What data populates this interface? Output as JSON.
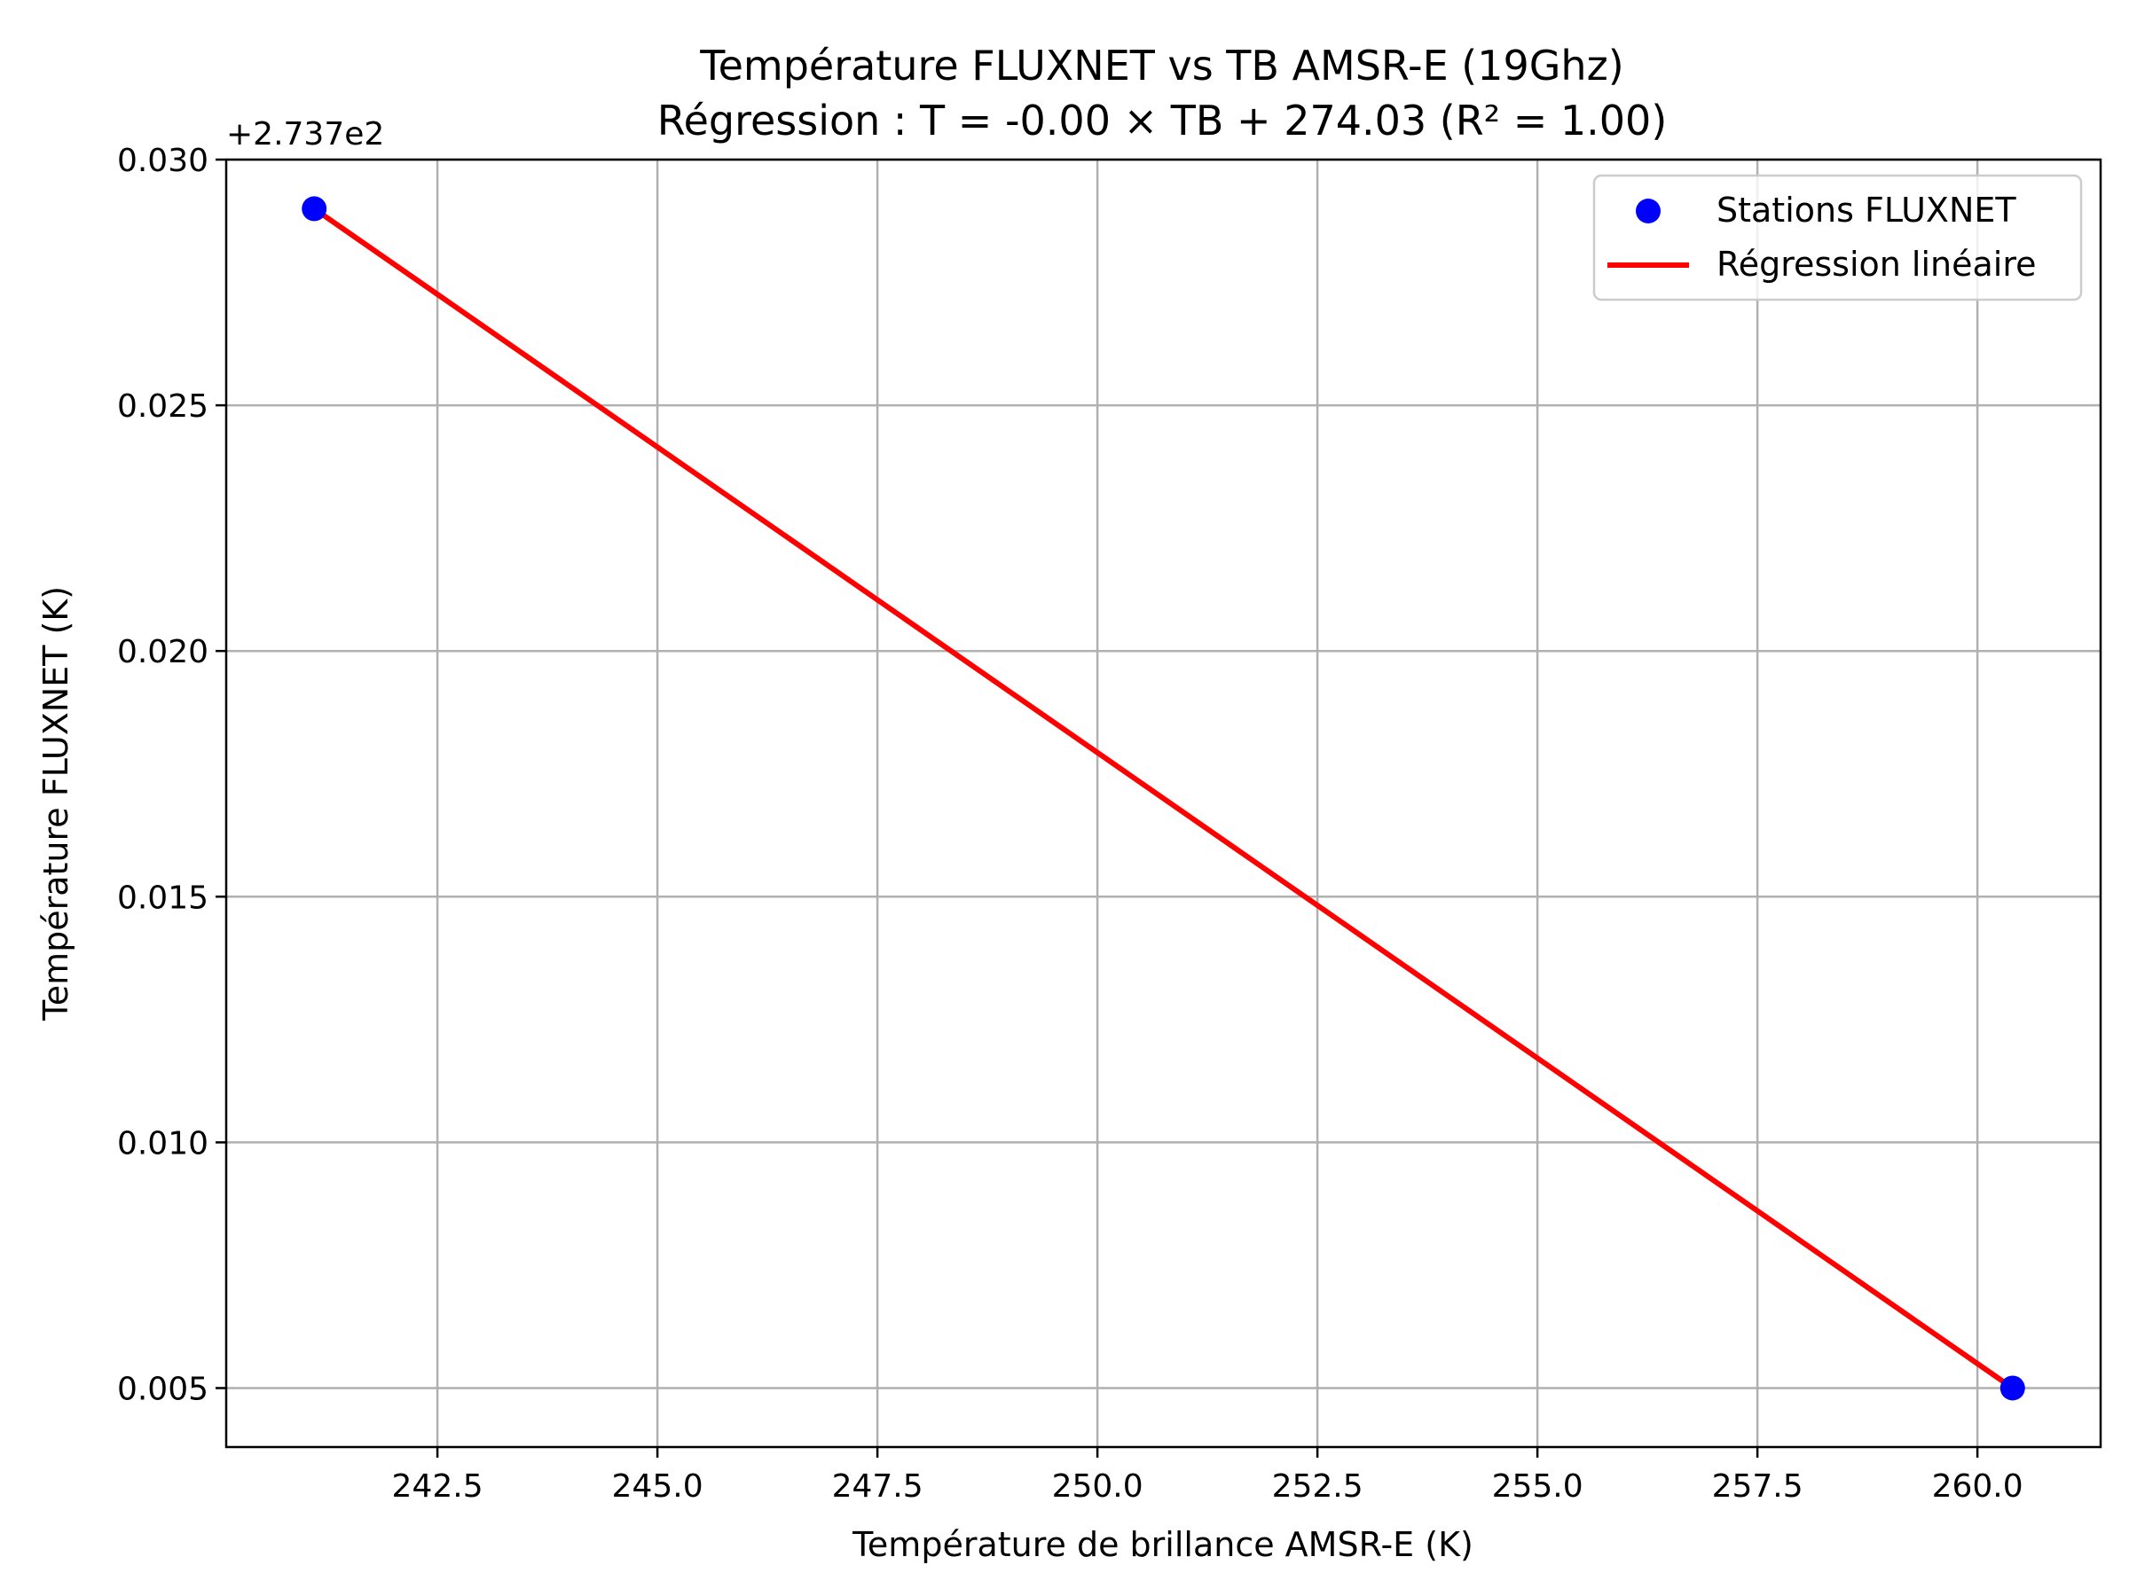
{
  "chart_data": {
    "type": "scatter",
    "title": "Température FLUXNET vs TB AMSR-E (19Ghz)",
    "subtitle": "Régression : T = -0.00 × TB + 274.03 (R² = 1.00)",
    "xlabel": "Température de brillance AMSR-E (K)",
    "ylabel": "Température FLUXNET (K)",
    "y_offset_label": "+2.737e2",
    "xlim": [
      240.1,
      261.4
    ],
    "ylim": [
      0.0038,
      0.03
    ],
    "x_ticks": [
      242.5,
      245.0,
      247.5,
      250.0,
      252.5,
      255.0,
      257.5,
      260.0
    ],
    "x_tick_labels": [
      "242.5",
      "245.0",
      "247.5",
      "250.0",
      "252.5",
      "255.0",
      "257.5",
      "260.0"
    ],
    "y_ticks": [
      0.005,
      0.01,
      0.015,
      0.02,
      0.025,
      0.03
    ],
    "y_tick_labels": [
      "0.005",
      "0.010",
      "0.015",
      "0.020",
      "0.025",
      "0.030"
    ],
    "grid": true,
    "legend_position": "top-right",
    "series": [
      {
        "name": "Stations FLUXNET",
        "kind": "scatter",
        "color": "#0000ff",
        "x": [
          241.1,
          260.4
        ],
        "y": [
          0.029,
          0.005
        ]
      },
      {
        "name": "Régression linéaire",
        "kind": "line",
        "color": "#ff0000",
        "x": [
          241.1,
          260.4
        ],
        "y": [
          0.029,
          0.005
        ]
      }
    ]
  }
}
